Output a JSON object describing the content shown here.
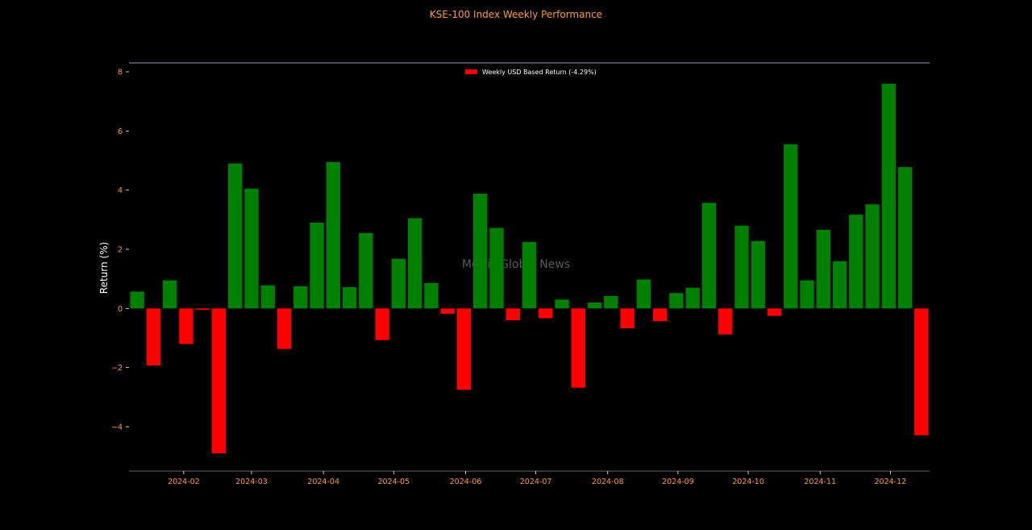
{
  "chart_data": {
    "type": "bar",
    "title": "KSE-100 Index Weekly Performance",
    "ylabel": "Return (%)",
    "xlabel": "",
    "ylim": [
      -5.5,
      8.3
    ],
    "yticks": [
      -4,
      -2,
      0,
      2,
      4,
      6,
      8
    ],
    "x_tick_labels": [
      "2024-02",
      "2024-03",
      "2024-04",
      "2024-05",
      "2024-06",
      "2024-07",
      "2024-08",
      "2024-09",
      "2024-10",
      "2024-11",
      "2024-12"
    ],
    "x_tick_after_bar": [
      3.35,
      7.5,
      11.9,
      16.2,
      20.6,
      24.9,
      29.3,
      33.6,
      37.9,
      42.3,
      46.6
    ],
    "legend": {
      "label": "Weekly USD Based Return (-4.29%)",
      "placement": "top-center"
    },
    "watermark": "Mettis Global News",
    "grid": false,
    "colors": {
      "positive": "#008000",
      "negative": "#ff0000",
      "tick": "#ff9a2e",
      "title": "#ff9a2e",
      "axis": "#ffffff"
    },
    "values": [
      0.57,
      -1.93,
      0.95,
      -1.2,
      -0.05,
      -4.9,
      4.9,
      4.05,
      0.78,
      -1.37,
      0.75,
      2.9,
      4.95,
      0.72,
      2.55,
      -1.07,
      1.68,
      3.05,
      0.86,
      -0.18,
      -2.75,
      3.88,
      2.72,
      -0.4,
      2.25,
      -0.33,
      0.3,
      -2.68,
      0.2,
      0.42,
      -0.67,
      0.98,
      -0.43,
      0.52,
      0.7,
      3.57,
      -0.88,
      2.8,
      2.28,
      -0.25,
      5.55,
      0.95,
      2.66,
      1.6,
      3.17,
      3.52,
      7.6,
      4.78,
      -4.29
    ]
  }
}
